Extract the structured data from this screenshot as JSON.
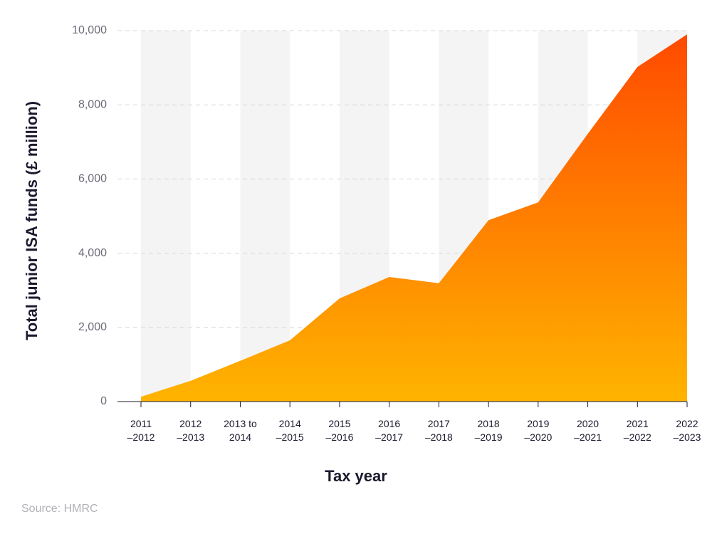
{
  "chart_data": {
    "type": "area",
    "y_label": "Total junior ISA funds (£ million)",
    "x_label": "Tax year",
    "source": "Source: HMRC",
    "categories": [
      "2011\n–2012",
      "2012\n–2013",
      "2013 to\n2014",
      "2014\n–2015",
      "2015\n–2016",
      "2016\n–2017",
      "2017\n–2018",
      "2018\n–2019",
      "2019\n–2020",
      "2020\n–2021",
      "2021\n–2022",
      "2022\n–2023"
    ],
    "values": [
      130,
      560,
      1100,
      1650,
      2780,
      3360,
      3190,
      4890,
      5370,
      7220,
      9020,
      9900
    ],
    "colors": [
      "#ff4a00",
      "#ffb400"
    ],
    "ylim": [
      0,
      10000
    ],
    "yticks": [
      0,
      {
        "value": 2000,
        "label": "2,000"
      },
      {
        "value": 4000,
        "label": "4,000"
      },
      {
        "value": 6000,
        "label": "6,000"
      },
      {
        "value": 8000,
        "label": "8,000"
      },
      {
        "value": 10000,
        "label": "10,000"
      }
    ],
    "grid": true
  }
}
